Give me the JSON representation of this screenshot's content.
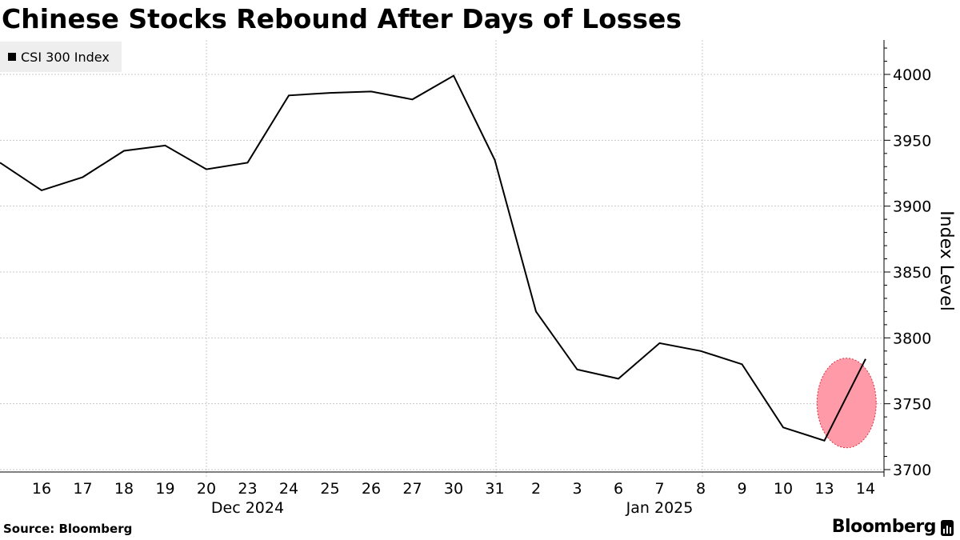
{
  "title": "Chinese Stocks Rebound After Days of Losses",
  "source": "Source: Bloomberg",
  "brand": "Bloomberg",
  "brand_icon": "bloomberg-bars-icon",
  "colors": {
    "line": "#000000",
    "highlight_fill": "#ff9aa8",
    "highlight_stroke": "#e0303f",
    "grid": "#c8c8c8",
    "legend_bg": "#eeeeee"
  },
  "chart_data": {
    "type": "line",
    "title": "Chinese Stocks Rebound After Days of Losses",
    "ylabel": "Index Level",
    "xlabel": "",
    "categories": [
      "16",
      "17",
      "18",
      "19",
      "20",
      "23",
      "24",
      "25",
      "26",
      "27",
      "30",
      "31",
      "2",
      "3",
      "6",
      "7",
      "8",
      "9",
      "10",
      "13",
      "14"
    ],
    "month_labels": [
      {
        "label": "Dec 2024",
        "at_category": "23"
      },
      {
        "label": "Jan 2025",
        "at_category": "7"
      }
    ],
    "series": [
      {
        "name": "CSI 300 Index",
        "x": [
          "2024-12-13",
          "2024-12-16",
          "2024-12-17",
          "2024-12-18",
          "2024-12-19",
          "2024-12-20",
          "2024-12-23",
          "2024-12-24",
          "2024-12-25",
          "2024-12-26",
          "2024-12-27",
          "2024-12-30",
          "2024-12-31",
          "2025-01-02",
          "2025-01-03",
          "2025-01-06",
          "2025-01-07",
          "2025-01-08",
          "2025-01-09",
          "2025-01-10",
          "2025-01-13",
          "2025-01-14"
        ],
        "values": [
          3933,
          3912,
          3922,
          3942,
          3946,
          3928,
          3933,
          3984,
          3986,
          3987,
          3981,
          3999,
          3935,
          3820,
          3776,
          3769,
          3796,
          3790,
          3780,
          3732,
          3722,
          3784
        ]
      }
    ],
    "yticks": [
      3700,
      3750,
      3800,
      3850,
      3900,
      3950,
      4000
    ],
    "ylim": [
      3695,
      4025
    ],
    "y_axis_position": "right",
    "grid": true,
    "legend": {
      "position": "top-left",
      "entries": [
        "CSI 300 Index"
      ]
    },
    "annotation": {
      "type": "ellipse-highlight",
      "around": "2025-01-13 to 2025-01-14 rebound"
    }
  }
}
